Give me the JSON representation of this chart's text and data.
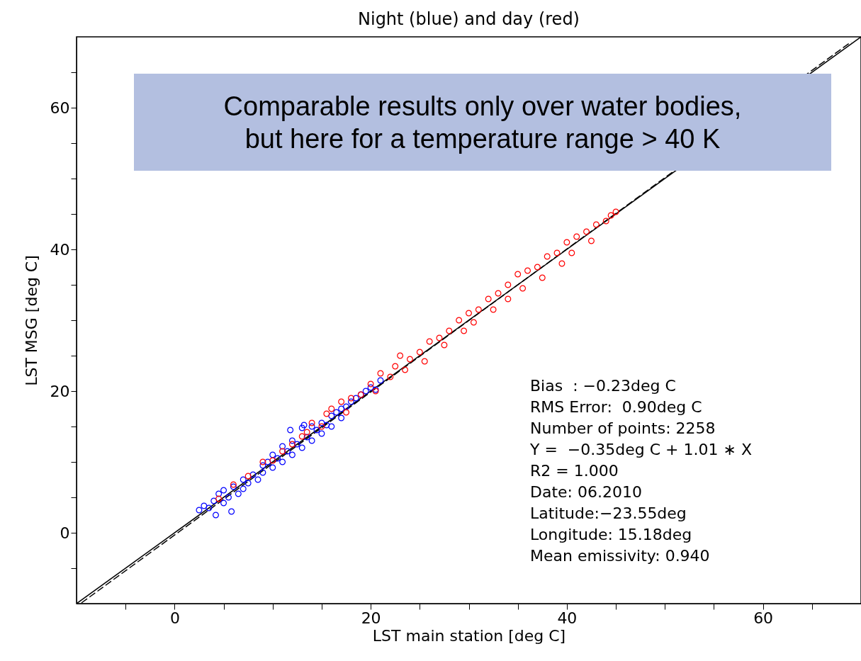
{
  "chart_data": {
    "type": "scatter",
    "title": "Night (blue) and day (red)",
    "xlabel": "LST main station [deg C]",
    "ylabel": "LST MSG [deg C]",
    "xlim": [
      -10,
      70
    ],
    "ylim": [
      -10,
      70
    ],
    "xticks": [
      {
        "value": -5,
        "label": null
      },
      0,
      {
        "value": 5,
        "label": null
      },
      {
        "value": 10,
        "label": null
      },
      {
        "value": 15,
        "label": null
      },
      20,
      {
        "value": 25,
        "label": null
      },
      {
        "value": 30,
        "label": null
      },
      {
        "value": 35,
        "label": null
      },
      40,
      {
        "value": 45,
        "label": null
      },
      {
        "value": 50,
        "label": null
      },
      {
        "value": 55,
        "label": null
      },
      60,
      {
        "value": 65,
        "label": null
      }
    ],
    "yticks": [
      {
        "value": -5,
        "label": null
      },
      0,
      {
        "value": 5,
        "label": null
      },
      {
        "value": 10,
        "label": null
      },
      {
        "value": 15,
        "label": null
      },
      20,
      {
        "value": 25,
        "label": null
      },
      {
        "value": 30,
        "label": null
      },
      {
        "value": 35,
        "label": null
      },
      40,
      {
        "value": 45,
        "label": null
      },
      {
        "value": 50,
        "label": null
      },
      {
        "value": 55,
        "label": null
      },
      60,
      {
        "value": 65,
        "label": null
      }
    ],
    "series": [
      {
        "type": "line",
        "color": "#000000",
        "line_style": "solid",
        "x": [
          -10,
          70
        ],
        "values": [
          -10,
          70
        ]
      },
      {
        "type": "line",
        "color": "#000000",
        "line_style": "dashed",
        "x": [
          -9.5,
          69
        ],
        "values": [
          -9.9,
          69.3
        ]
      },
      {
        "marker": "circle",
        "color": "#0000ff",
        "x": [
          2.5,
          3,
          3.5,
          4,
          4.2,
          4.5,
          5,
          5,
          5.5,
          5.8,
          6,
          6.5,
          7,
          7,
          7.5,
          8,
          8.5,
          9,
          9,
          9.5,
          10,
          10,
          10.5,
          11,
          11,
          11.5,
          12,
          12,
          12.5,
          13,
          13,
          13.5,
          14,
          14,
          14.5,
          15,
          15,
          15.5,
          16,
          16,
          16.5,
          17,
          17,
          17.5,
          18,
          18.5,
          19,
          19.5,
          20,
          20.5,
          21,
          13.2,
          11.8
        ],
        "values": [
          3.2,
          3.8,
          3.5,
          4.5,
          2.5,
          5.5,
          4.2,
          6,
          5,
          3,
          6.5,
          5.5,
          7.5,
          6.2,
          7,
          8.2,
          7.5,
          9.5,
          8.5,
          10,
          9.2,
          11,
          10.5,
          12.2,
          10,
          11.5,
          13,
          11,
          12.5,
          14.8,
          12,
          13.5,
          15,
          13,
          14.5,
          15.5,
          14,
          15.2,
          16.5,
          15,
          17,
          17.5,
          16.2,
          17.8,
          18.5,
          19,
          19.5,
          20,
          20.5,
          20.2,
          21.5,
          15.2,
          14.5
        ]
      },
      {
        "marker": "circle",
        "color": "#ff0000",
        "x": [
          4.5,
          6,
          7.5,
          9,
          10,
          11,
          12,
          13,
          13.5,
          14,
          15,
          15.5,
          16,
          17,
          17.5,
          18,
          19,
          20,
          20.5,
          21,
          22,
          22.5,
          23,
          23.5,
          24,
          25,
          25.5,
          26,
          27,
          27.5,
          28,
          29,
          29.5,
          30,
          30.5,
          31,
          32,
          32.5,
          33,
          34,
          34,
          35,
          35.5,
          36,
          37,
          37.5,
          38,
          39,
          39.5,
          40,
          40.5,
          41,
          42,
          42.5,
          43,
          44,
          45,
          44.5
        ],
        "values": [
          4.8,
          6.8,
          8,
          10,
          10.2,
          11.5,
          12.5,
          13.6,
          14.2,
          15.5,
          15,
          16.8,
          17.5,
          18.5,
          17,
          19,
          19.5,
          21,
          20,
          22.5,
          22,
          23.5,
          25,
          23,
          24.5,
          25.5,
          24.2,
          27,
          27.5,
          26.5,
          28.5,
          30,
          28.5,
          31,
          29.7,
          31.5,
          33,
          31.5,
          33.8,
          35,
          33,
          36.5,
          34.5,
          37,
          37.5,
          36,
          39,
          39.5,
          38,
          41,
          39.5,
          41.8,
          42.5,
          41.2,
          43.5,
          44,
          45.3,
          44.8
        ]
      }
    ],
    "annotations": [
      "Comparable results only over water bodies,\nbut here for a temperature range > 40 K",
      "Bias  : −0.23deg C",
      "RMS Error:  0.90deg C",
      "Number of points: 2258",
      "Y =  −0.35deg C + 1.01 ∗ X",
      "R2 = 1.000",
      "Date: 06.2010",
      "Latitude:−23.55deg",
      "Longitude: 15.18deg",
      "Mean emissivity: 0.940"
    ]
  }
}
